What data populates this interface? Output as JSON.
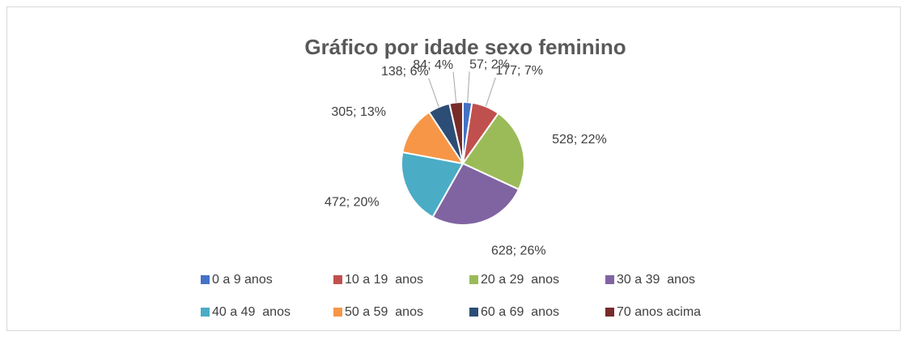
{
  "chart_data": {
    "type": "pie",
    "title": "Gráfico por idade sexo feminino",
    "categories": [
      "0 a 9 anos",
      "10 a 19  anos",
      "20 a 29  anos",
      "30 a 39  anos",
      "40 a 49  anos",
      "50 a 59  anos",
      "60 a 69  anos",
      "70 anos acima"
    ],
    "values": [
      57,
      177,
      528,
      628,
      472,
      305,
      138,
      84
    ],
    "value_labels": [
      "57; 2%",
      "177; 7%",
      "528; 22%",
      "628; 26%",
      "472; 20%",
      "305; 13%",
      "138; 6%",
      "84; 4%"
    ],
    "colors": [
      "#4472c4",
      "#c0504d",
      "#9bbb59",
      "#8064a2",
      "#4bacc6",
      "#f79646",
      "#2c4d75",
      "#772c2a"
    ],
    "legend": "bottom"
  }
}
